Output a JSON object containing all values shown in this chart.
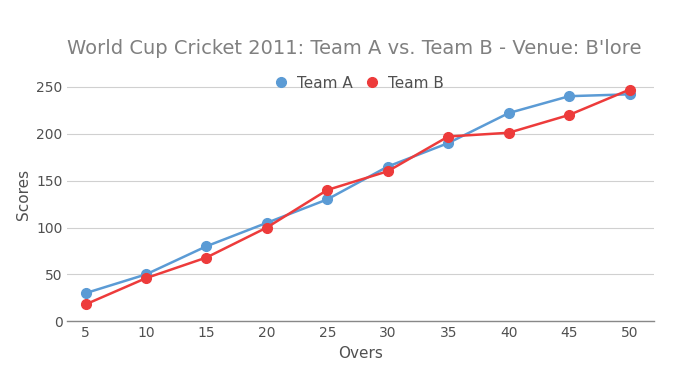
{
  "title": "World Cup Cricket 2011: Team A vs. Team B - Venue: B'lore",
  "xlabel": "Overs",
  "ylabel": "Scores",
  "team_a": {
    "label": "Team A",
    "color": "#5b9bd5",
    "overs": [
      5,
      10,
      15,
      20,
      25,
      30,
      35,
      40,
      45,
      50
    ],
    "scores": [
      30,
      50,
      80,
      105,
      130,
      165,
      190,
      222,
      240,
      242
    ]
  },
  "team_b": {
    "label": "Team B",
    "color": "#ed3b3b",
    "overs": [
      5,
      10,
      15,
      20,
      25,
      30,
      35,
      40,
      45,
      50
    ],
    "scores": [
      18,
      46,
      68,
      100,
      140,
      160,
      197,
      201,
      220,
      247
    ]
  },
  "xlim": [
    3.5,
    52
  ],
  "ylim": [
    0,
    270
  ],
  "xticks": [
    5,
    10,
    15,
    20,
    25,
    30,
    35,
    40,
    45,
    50
  ],
  "yticks": [
    0,
    50,
    100,
    150,
    200,
    250
  ],
  "grid": true,
  "title_fontsize": 14,
  "label_fontsize": 11,
  "tick_fontsize": 10,
  "legend_fontsize": 11,
  "line_width": 1.8,
  "marker_size": 7,
  "title_color": "#808080",
  "axis_label_color": "#505050",
  "tick_color": "#505050",
  "grid_color": "#d0d0d0",
  "background_color": "#ffffff",
  "legend_loc": "upper center",
  "legend_ncol": 2
}
